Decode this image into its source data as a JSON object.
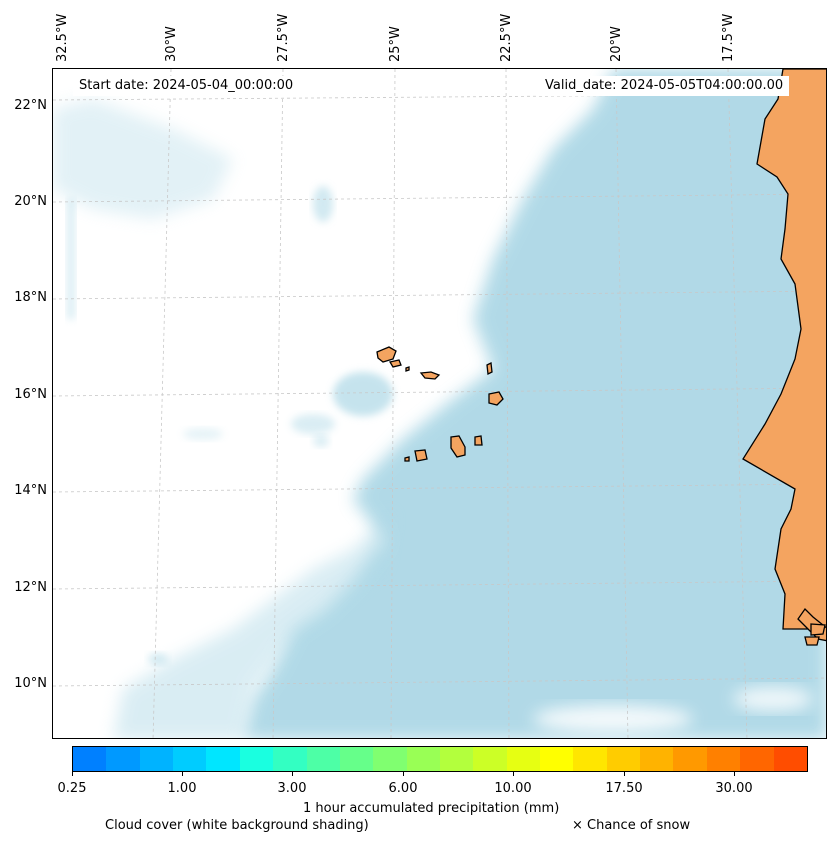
{
  "map": {
    "start_date": "Start date: 2024-05-04_00:00:00",
    "valid_date": "Valid_date: 2024-05-05T04:00:00.00",
    "lon_labels": [
      "32.5°W",
      "30°W",
      "27.5°W",
      "25°W",
      "22.5°W",
      "20°W",
      "17.5°W"
    ],
    "lat_labels": [
      "22°N",
      "20°N",
      "18°N",
      "16°N",
      "14°N",
      "12°N",
      "10°N"
    ],
    "colors": {
      "land": "#f4a460",
      "cloud": "#add8e6",
      "gridline": "#c8c8c8",
      "coast": "#000000"
    }
  },
  "colorbar": {
    "ticks": [
      "0.25",
      "1.00",
      "3.00",
      "6.00",
      "10.00",
      "17.50",
      "30.00"
    ],
    "colors": [
      "#0080ff",
      "#0099ff",
      "#00b3ff",
      "#00ccff",
      "#00e6ff",
      "#1affe0",
      "#33ffc2",
      "#4dffa6",
      "#66ff8a",
      "#80ff70",
      "#99ff55",
      "#b3ff3d",
      "#ccff26",
      "#e6ff12",
      "#ffff00",
      "#ffe600",
      "#ffcc00",
      "#ffb300",
      "#ff9900",
      "#ff8000",
      "#ff6600",
      "#ff4d00"
    ],
    "label": "1 hour accumulated precipitation (mm)"
  },
  "legend": {
    "cloud_cover": "Cloud cover (white background shading)",
    "snow": "× Chance of snow"
  }
}
